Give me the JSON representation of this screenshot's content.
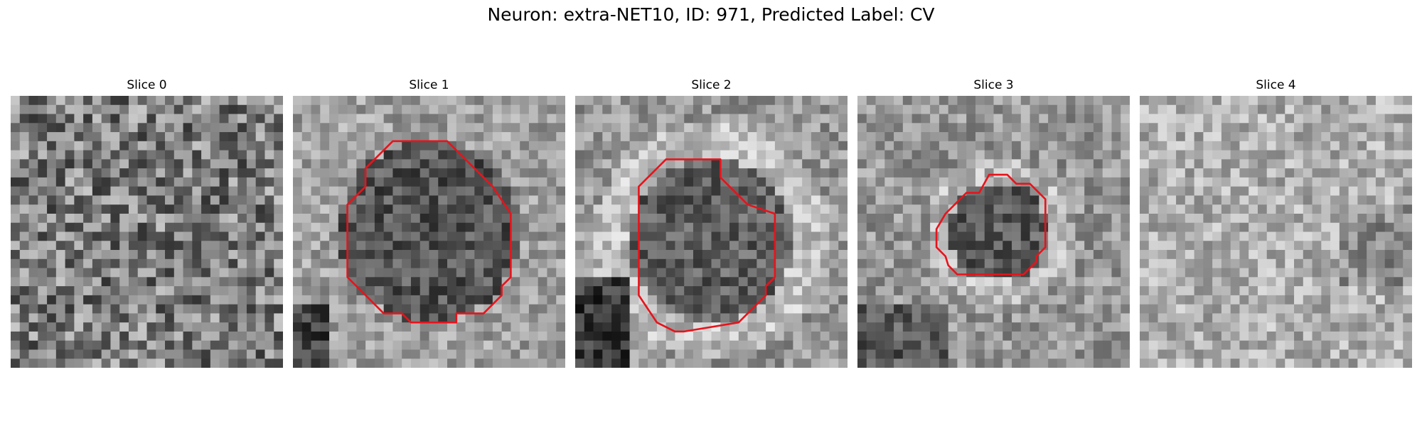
{
  "figure": {
    "title": "Neuron: extra-NET10, ID: 971, Predicted Label: CV"
  },
  "panels": [
    {
      "title": "Slice 0",
      "seed": 11,
      "pattern": "noise",
      "contour": false
    },
    {
      "title": "Slice 1",
      "seed": 23,
      "pattern": "dark-blob",
      "contour": true
    },
    {
      "title": "Slice 2",
      "seed": 37,
      "pattern": "dark-blob-ring",
      "contour": true
    },
    {
      "title": "Slice 3",
      "seed": 53,
      "pattern": "small-blob",
      "contour": true
    },
    {
      "title": "Slice 4",
      "seed": 71,
      "pattern": "light",
      "contour": false
    }
  ],
  "colors": {
    "contour": "#e8131b",
    "background": "#ffffff"
  }
}
